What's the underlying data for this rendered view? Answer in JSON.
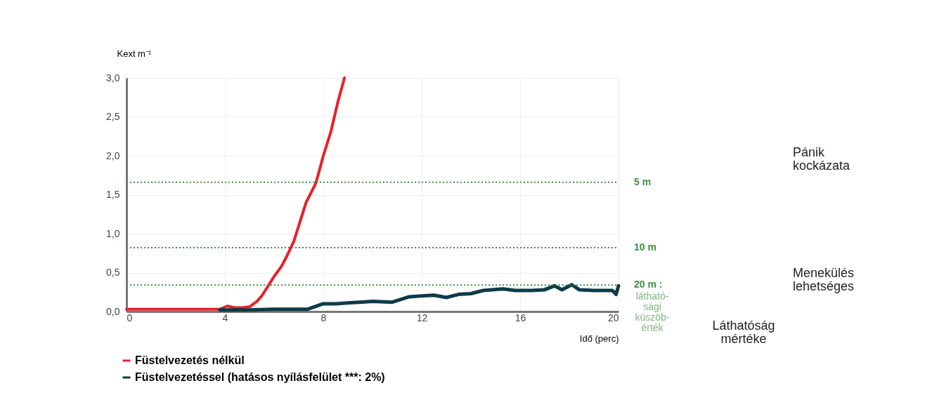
{
  "chart_data": {
    "type": "line",
    "xlabel": "Idő (perc)",
    "ylabel": "Kext m⁻¹",
    "xlim": [
      0,
      20
    ],
    "xticks": [
      0,
      4,
      8,
      12,
      16,
      20
    ],
    "ylim": [
      0,
      3
    ],
    "yticks": [
      {
        "value": 0,
        "label": "0,0"
      },
      {
        "value": 0.5,
        "label": "0,5"
      },
      {
        "value": 1,
        "label": "1,0"
      },
      {
        "value": 1.5,
        "label": "1,5"
      },
      {
        "value": 2,
        "label": "2,0"
      },
      {
        "value": 2.5,
        "label": "2,5"
      },
      {
        "value": 3,
        "label": "3,0"
      }
    ],
    "grid": true,
    "legend": "bottom left",
    "line_style": "solid",
    "marker": "none",
    "series": [
      {
        "name": "Füstelvezetés nélkül",
        "color": "#e8202a",
        "x": [
          0,
          1,
          2,
          3,
          3.8,
          4.1,
          4.4,
          4.7,
          5.0,
          5.3,
          5.5,
          5.8,
          6.0,
          6.3,
          6.5,
          6.8,
          7.0,
          7.3,
          7.7,
          8.0,
          8.3,
          8.6,
          8.86
        ],
        "values": [
          0.03,
          0.03,
          0.03,
          0.03,
          0.03,
          0.07,
          0.05,
          0.05,
          0.06,
          0.13,
          0.2,
          0.35,
          0.45,
          0.58,
          0.7,
          0.9,
          1.1,
          1.4,
          1.65,
          2.0,
          2.3,
          2.7,
          3.0
        ]
      },
      {
        "name": "Füstelvezetéssel (hatásos nyílásfelület ***: 2%)",
        "color": "#0d3b4a",
        "x": [
          3.8,
          5.0,
          6.0,
          7.0,
          7.37,
          8.0,
          8.5,
          9.0,
          9.5,
          10.0,
          10.8,
          11.5,
          12.0,
          12.5,
          13.0,
          13.5,
          14.0,
          14.5,
          15.3,
          15.8,
          16.5,
          17.0,
          17.4,
          17.7,
          18.1,
          18.4,
          19.0,
          19.75,
          19.9,
          20.0
        ],
        "values": [
          0.02,
          0.02,
          0.03,
          0.03,
          0.03,
          0.1,
          0.1,
          0.11,
          0.12,
          0.13,
          0.12,
          0.19,
          0.2,
          0.21,
          0.18,
          0.22,
          0.23,
          0.27,
          0.29,
          0.27,
          0.27,
          0.28,
          0.33,
          0.28,
          0.345,
          0.28,
          0.27,
          0.27,
          0.22,
          0.33
        ]
      }
    ],
    "ref_lines": [
      {
        "axis": "y",
        "value": 1.66,
        "label": "5 m",
        "color": "#3f8f3f",
        "line_style": "dotted"
      },
      {
        "axis": "y",
        "value": 0.82,
        "label": "10 m",
        "color": "#3f8f3f",
        "line_style": "dotted"
      },
      {
        "axis": "y",
        "value": 0.34,
        "label": "20 m :",
        "color": "#3f8f3f",
        "line_style": "dotted"
      }
    ],
    "annotations": [
      "látható- sági küszöb- érték",
      "Pánik kockázata",
      "Menekülés lehetséges",
      "Láthatóság mértéke"
    ]
  }
}
